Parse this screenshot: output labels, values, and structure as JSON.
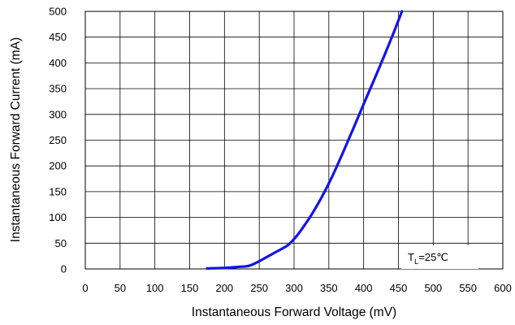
{
  "chart_data": {
    "type": "line",
    "title": "",
    "xlabel": "Instantaneous Forward Voltage (mV)",
    "ylabel": "Instantaneous Forward Current (mA)",
    "xlim": [
      0,
      600
    ],
    "ylim": [
      0,
      500
    ],
    "xticks": [
      0,
      50,
      100,
      150,
      200,
      250,
      300,
      350,
      400,
      450,
      500,
      550,
      600
    ],
    "yticks": [
      0,
      50,
      100,
      150,
      200,
      250,
      300,
      350,
      400,
      450,
      500
    ],
    "grid": true,
    "legend": "none",
    "annotation": {
      "main": "T",
      "sub": "L",
      "rest": "=25℃"
    },
    "series": [
      {
        "color": "#1414e6",
        "x": [
          175,
          200,
          220,
          235,
          250,
          270,
          290,
          300,
          310,
          325,
          340,
          355,
          370,
          385,
          400,
          415,
          430,
          445,
          455
        ],
        "y": [
          1,
          2,
          4,
          6,
          15,
          30,
          45,
          58,
          75,
          105,
          140,
          180,
          225,
          272,
          320,
          367,
          415,
          465,
          500
        ]
      }
    ]
  }
}
